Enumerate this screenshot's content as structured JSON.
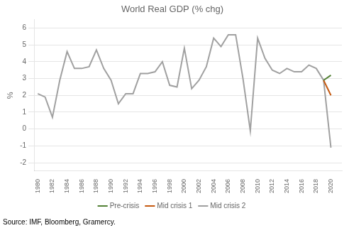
{
  "chart_data": {
    "type": "line",
    "title": "World Real GDP (% chg)",
    "ylabel": "%",
    "source": "Source: IMF, Bloomberg, Gramercy.",
    "xlim": [
      1979.5,
      2021.5
    ],
    "xticks": [
      1980,
      1982,
      1984,
      1986,
      1988,
      1990,
      1992,
      1994,
      1996,
      1998,
      2000,
      2002,
      2004,
      2006,
      2008,
      2010,
      2012,
      2014,
      2016,
      2018,
      2020
    ],
    "ylim": [
      -2.5,
      6.5
    ],
    "yticks": [
      -2,
      -1,
      0,
      1,
      2,
      3,
      4,
      5,
      6
    ],
    "grid": "y",
    "legend": "bottom",
    "series": [
      {
        "name": "Pre-crisis",
        "color": "#538135",
        "x": [
          2019,
          2020
        ],
        "values": [
          2.9,
          3.2
        ]
      },
      {
        "name": "Mid crisis 1",
        "color": "#C55A11",
        "x": [
          2019,
          2020
        ],
        "values": [
          2.9,
          2.0
        ]
      },
      {
        "name": "Mid crisis 2",
        "color": "#a0a0a0",
        "x": [
          1980,
          1981,
          1982,
          1983,
          1984,
          1985,
          1986,
          1987,
          1988,
          1989,
          1990,
          1991,
          1992,
          1993,
          1994,
          1995,
          1996,
          1997,
          1998,
          1999,
          2000,
          2001,
          2002,
          2003,
          2004,
          2005,
          2006,
          2007,
          2008,
          2009,
          2010,
          2011,
          2012,
          2013,
          2014,
          2015,
          2016,
          2017,
          2018,
          2019,
          2020
        ],
        "values": [
          2.1,
          1.9,
          0.7,
          2.9,
          4.6,
          3.6,
          3.6,
          3.7,
          4.7,
          3.6,
          2.9,
          1.5,
          2.1,
          2.1,
          3.3,
          3.3,
          3.4,
          4.0,
          2.6,
          2.5,
          4.8,
          2.4,
          2.9,
          3.7,
          5.4,
          4.9,
          5.6,
          5.6,
          3.0,
          -0.1,
          5.4,
          4.2,
          3.5,
          3.3,
          3.6,
          3.4,
          3.4,
          3.8,
          3.6,
          2.9,
          -1.1
        ]
      }
    ]
  }
}
